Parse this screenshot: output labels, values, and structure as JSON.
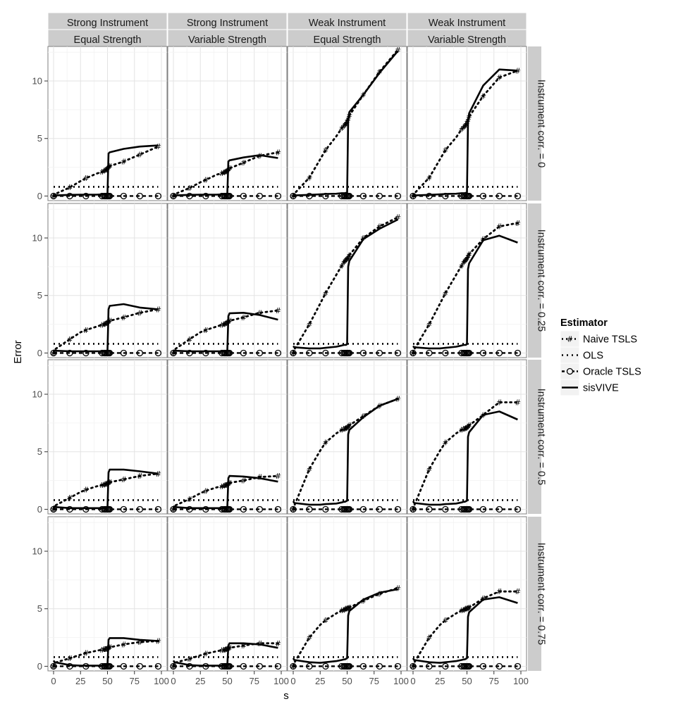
{
  "chart_data": {
    "type": "line",
    "facet": "grid",
    "xlabel": "s",
    "ylabel": "Error",
    "xlim": [
      0,
      100
    ],
    "ylim": [
      -0.4,
      13
    ],
    "x_ticks": [
      "0",
      "25",
      "50",
      "75",
      "100"
    ],
    "y_ticks": [
      "0",
      "5",
      "10"
    ],
    "grid": true,
    "col_strips": [
      [
        "Strong Instrument",
        "Equal Strength"
      ],
      [
        "Strong Instrument",
        "Variable Strength"
      ],
      [
        "Weak Instrument",
        "Equal Strength"
      ],
      [
        "Weak Instrument",
        "Variable Strength"
      ]
    ],
    "row_strips": [
      "Instrument corr. = 0",
      "Instrument corr. = 0.25",
      "Instrument corr. = 0.5",
      "Instrument corr. = 0.75"
    ],
    "legend": {
      "title": "Estimator",
      "position": "right",
      "entries": [
        "Naive TSLS",
        "OLS",
        "Oracle TSLS",
        "sisVIVE"
      ]
    },
    "x": [
      0,
      1,
      15,
      25,
      30,
      40,
      45,
      47,
      48,
      49,
      50,
      51,
      52,
      65,
      80,
      97
    ],
    "ols_level": 0.8,
    "panels": [
      [
        {
          "naive": [
            0,
            0.15,
            0.75,
            1.3,
            1.55,
            1.95,
            2.1,
            2.2,
            2.25,
            2.3,
            2.4,
            2.5,
            2.6,
            3.0,
            3.6,
            4.3
          ],
          "sisvive": [
            0,
            0.05,
            0.1,
            0.12,
            0.12,
            0.12,
            0.15,
            0.15,
            0.15,
            0.15,
            0.2,
            3.7,
            3.8,
            4.1,
            4.3,
            4.4
          ]
        },
        {
          "naive": [
            0,
            0.15,
            0.7,
            1.2,
            1.4,
            1.85,
            2.0,
            2.05,
            2.1,
            2.15,
            2.2,
            2.3,
            2.4,
            2.9,
            3.5,
            3.8
          ],
          "sisvive": [
            0,
            0.05,
            0.1,
            0.12,
            0.12,
            0.12,
            0.15,
            0.15,
            0.15,
            0.15,
            0.2,
            3.0,
            3.1,
            3.35,
            3.55,
            3.3
          ]
        },
        {
          "naive": [
            0,
            0.2,
            1.6,
            3.2,
            4.0,
            5.2,
            5.9,
            6.1,
            6.2,
            6.3,
            6.5,
            6.7,
            7.0,
            8.8,
            10.8,
            12.7
          ],
          "sisvive": [
            0,
            0.05,
            0.1,
            0.15,
            0.18,
            0.2,
            0.25,
            0.25,
            0.25,
            0.28,
            0.3,
            6.7,
            7.3,
            8.8,
            10.7,
            12.6
          ]
        },
        {
          "naive": [
            0,
            0.2,
            1.6,
            3.2,
            4.0,
            5.1,
            5.8,
            6.0,
            6.1,
            6.2,
            6.4,
            6.6,
            6.9,
            8.7,
            10.3,
            10.9
          ],
          "sisvive": [
            0,
            0.05,
            0.1,
            0.15,
            0.18,
            0.2,
            0.25,
            0.25,
            0.25,
            0.28,
            0.3,
            6.5,
            7.2,
            9.6,
            11.0,
            10.9
          ]
        }
      ],
      [
        {
          "naive": [
            0,
            0.3,
            1.2,
            1.8,
            2.0,
            2.3,
            2.45,
            2.5,
            2.55,
            2.6,
            2.65,
            2.7,
            2.8,
            3.1,
            3.5,
            3.8
          ],
          "sisvive": [
            0.25,
            0.2,
            0.15,
            0.15,
            0.15,
            0.15,
            0.15,
            0.15,
            0.15,
            0.15,
            0.2,
            3.8,
            4.1,
            4.25,
            3.95,
            3.8
          ]
        },
        {
          "naive": [
            0,
            0.3,
            1.2,
            1.8,
            2.0,
            2.3,
            2.45,
            2.5,
            2.55,
            2.6,
            2.65,
            2.7,
            2.8,
            3.1,
            3.5,
            3.7
          ],
          "sisvive": [
            0.25,
            0.2,
            0.15,
            0.15,
            0.15,
            0.15,
            0.15,
            0.15,
            0.15,
            0.15,
            0.2,
            3.2,
            3.45,
            3.5,
            3.3,
            2.9
          ]
        },
        {
          "naive": [
            0,
            0.3,
            2.5,
            4.3,
            5.2,
            6.8,
            7.6,
            7.9,
            8.0,
            8.1,
            8.2,
            8.3,
            8.5,
            10.0,
            11.0,
            11.8
          ],
          "sisvive": [
            0.6,
            0.5,
            0.4,
            0.4,
            0.45,
            0.55,
            0.65,
            0.7,
            0.7,
            0.7,
            0.8,
            7.5,
            8.0,
            9.9,
            10.8,
            11.6
          ]
        },
        {
          "naive": [
            0,
            0.3,
            2.5,
            4.3,
            5.2,
            6.8,
            7.6,
            7.9,
            8.0,
            8.1,
            8.2,
            8.4,
            8.6,
            9.9,
            11.0,
            11.3
          ],
          "sisvive": [
            0.6,
            0.5,
            0.4,
            0.4,
            0.45,
            0.55,
            0.65,
            0.7,
            0.7,
            0.7,
            0.8,
            7.3,
            7.8,
            9.8,
            10.2,
            9.6
          ]
        }
      ],
      [
        {
          "naive": [
            0,
            0.3,
            1.0,
            1.5,
            1.7,
            2.0,
            2.1,
            2.15,
            2.2,
            2.2,
            2.25,
            2.3,
            2.35,
            2.6,
            2.9,
            3.1
          ],
          "sisvive": [
            0.3,
            0.2,
            0.1,
            0.1,
            0.1,
            0.1,
            0.1,
            0.1,
            0.1,
            0.1,
            0.15,
            3.2,
            3.45,
            3.45,
            3.3,
            3.1
          ]
        },
        {
          "naive": [
            0,
            0.3,
            0.9,
            1.4,
            1.6,
            1.9,
            2.0,
            2.05,
            2.1,
            2.1,
            2.15,
            2.2,
            2.3,
            2.5,
            2.8,
            2.9
          ],
          "sisvive": [
            0.3,
            0.2,
            0.1,
            0.1,
            0.1,
            0.1,
            0.1,
            0.1,
            0.1,
            0.1,
            0.15,
            2.7,
            2.9,
            2.85,
            2.7,
            2.4
          ]
        },
        {
          "naive": [
            0,
            0.3,
            3.5,
            5.1,
            5.8,
            6.6,
            6.9,
            7.0,
            7.0,
            7.05,
            7.1,
            7.2,
            7.3,
            8.1,
            9.0,
            9.6
          ],
          "sisvive": [
            0.7,
            0.55,
            0.4,
            0.4,
            0.45,
            0.5,
            0.6,
            0.65,
            0.65,
            0.7,
            0.75,
            6.5,
            6.9,
            8.0,
            9.0,
            9.6
          ]
        },
        {
          "naive": [
            0,
            0.3,
            3.5,
            5.1,
            5.8,
            6.6,
            6.9,
            7.0,
            7.0,
            7.05,
            7.1,
            7.2,
            7.3,
            8.2,
            9.3,
            9.3
          ],
          "sisvive": [
            0.7,
            0.55,
            0.4,
            0.4,
            0.45,
            0.5,
            0.6,
            0.65,
            0.65,
            0.7,
            0.75,
            6.3,
            6.7,
            8.2,
            8.5,
            7.8
          ]
        }
      ],
      [
        {
          "naive": [
            0,
            0.3,
            0.7,
            1.0,
            1.15,
            1.35,
            1.45,
            1.5,
            1.5,
            1.5,
            1.55,
            1.6,
            1.65,
            1.9,
            2.1,
            2.2
          ],
          "sisvive": [
            0.5,
            0.35,
            0.1,
            0.05,
            0.05,
            0.05,
            0.05,
            0.05,
            0.05,
            0.05,
            0.1,
            2.3,
            2.45,
            2.45,
            2.3,
            2.2
          ]
        },
        {
          "naive": [
            0,
            0.3,
            0.65,
            0.95,
            1.1,
            1.3,
            1.4,
            1.45,
            1.45,
            1.5,
            1.5,
            1.55,
            1.6,
            1.8,
            2.0,
            2.0
          ],
          "sisvive": [
            0.5,
            0.35,
            0.1,
            0.05,
            0.05,
            0.05,
            0.05,
            0.05,
            0.05,
            0.05,
            0.1,
            1.8,
            2.0,
            2.0,
            1.9,
            1.6
          ]
        },
        {
          "naive": [
            0,
            0.3,
            2.5,
            3.6,
            4.0,
            4.6,
            4.85,
            4.9,
            4.95,
            5.0,
            5.0,
            5.05,
            5.1,
            5.7,
            6.3,
            6.8
          ],
          "sisvive": [
            0.7,
            0.55,
            0.35,
            0.3,
            0.35,
            0.45,
            0.55,
            0.6,
            0.6,
            0.65,
            0.7,
            4.4,
            4.8,
            5.8,
            6.4,
            6.7
          ]
        },
        {
          "naive": [
            0,
            0.3,
            2.5,
            3.6,
            4.0,
            4.6,
            4.85,
            4.9,
            4.95,
            5.0,
            5.0,
            5.05,
            5.1,
            5.9,
            6.5,
            6.5
          ],
          "sisvive": [
            0.7,
            0.55,
            0.35,
            0.3,
            0.35,
            0.45,
            0.55,
            0.6,
            0.6,
            0.65,
            0.7,
            4.3,
            4.7,
            5.8,
            6.0,
            5.5
          ]
        }
      ]
    ]
  }
}
